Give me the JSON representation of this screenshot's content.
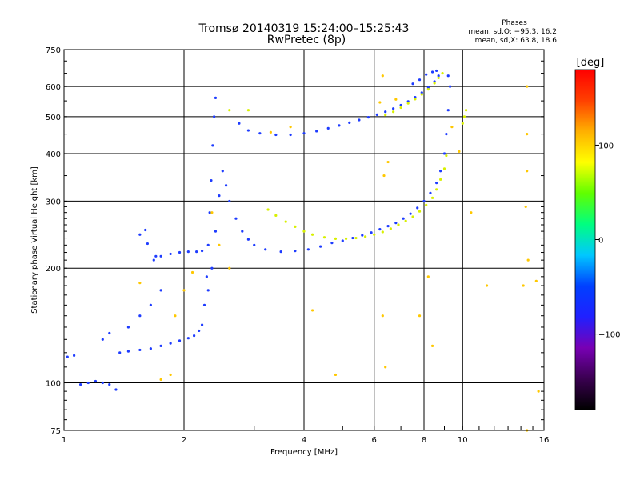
{
  "chart_data": {
    "type": "scatter",
    "title": "Tromsø 20140319 15:24:00–15:25:43",
    "subtitle": "RwPretec (8p)",
    "phases_title": "Phases",
    "phases_o": "mean, sd,O: −95.3, 16.2",
    "phases_x": "mean, sd,X:  63.8, 18.6",
    "xlabel": "Frequency [MHz]",
    "ylabel": "Stationary phase Virtual Height [km]",
    "xscale": "log",
    "yscale": "log",
    "xlim": [
      1,
      16
    ],
    "ylim": [
      75,
      750
    ],
    "grid": true,
    "x_ticks": [
      1,
      2,
      4,
      6,
      8,
      10,
      16
    ],
    "y_ticks": [
      75,
      100,
      200,
      300,
      400,
      500,
      600,
      750
    ],
    "colorbar": {
      "label": "[deg]",
      "range": [
        -180,
        180
      ],
      "ticks": [
        100,
        0,
        -100
      ],
      "colors": [
        "#000000",
        "#3a0050",
        "#7800b4",
        "#2020ff",
        "#0040ff",
        "#00c8ff",
        "#00ff80",
        "#60ff00",
        "#ffff00",
        "#ffb000",
        "#ff4000",
        "#ff0000"
      ]
    },
    "series": [
      {
        "mode": "O",
        "color": "#1e3cff",
        "points": [
          [
            1.02,
            117
          ],
          [
            1.06,
            118
          ],
          [
            1.1,
            99
          ],
          [
            1.15,
            100
          ],
          [
            1.2,
            101
          ],
          [
            1.25,
            100
          ],
          [
            1.3,
            99
          ],
          [
            1.35,
            96
          ],
          [
            1.38,
            120
          ],
          [
            1.45,
            121
          ],
          [
            1.55,
            122
          ],
          [
            1.65,
            123
          ],
          [
            1.75,
            125
          ],
          [
            1.85,
            127
          ],
          [
            1.95,
            129
          ],
          [
            2.05,
            131
          ],
          [
            2.12,
            133
          ],
          [
            2.18,
            137
          ],
          [
            2.22,
            142
          ],
          [
            2.25,
            160
          ],
          [
            2.28,
            190
          ],
          [
            2.3,
            230
          ],
          [
            2.32,
            280
          ],
          [
            2.34,
            340
          ],
          [
            2.36,
            420
          ],
          [
            2.38,
            500
          ],
          [
            2.4,
            560
          ],
          [
            1.68,
            210
          ],
          [
            1.75,
            215
          ],
          [
            1.85,
            218
          ],
          [
            1.95,
            220
          ],
          [
            2.05,
            221
          ],
          [
            2.15,
            221
          ],
          [
            2.22,
            222
          ],
          [
            2.3,
            175
          ],
          [
            2.35,
            200
          ],
          [
            2.4,
            250
          ],
          [
            2.45,
            310
          ],
          [
            2.5,
            360
          ],
          [
            2.55,
            330
          ],
          [
            2.6,
            300
          ],
          [
            2.7,
            270
          ],
          [
            2.8,
            250
          ],
          [
            2.9,
            238
          ],
          [
            3.0,
            230
          ],
          [
            3.2,
            224
          ],
          [
            3.5,
            221
          ],
          [
            3.8,
            222
          ],
          [
            4.1,
            224
          ],
          [
            4.4,
            228
          ],
          [
            4.7,
            233
          ],
          [
            5.0,
            236
          ],
          [
            5.3,
            240
          ],
          [
            5.6,
            244
          ],
          [
            5.9,
            248
          ],
          [
            6.2,
            253
          ],
          [
            6.5,
            258
          ],
          [
            6.8,
            263
          ],
          [
            7.1,
            270
          ],
          [
            7.4,
            278
          ],
          [
            7.7,
            288
          ],
          [
            8.0,
            300
          ],
          [
            8.3,
            315
          ],
          [
            8.6,
            335
          ],
          [
            8.8,
            360
          ],
          [
            9.0,
            400
          ],
          [
            9.1,
            450
          ],
          [
            9.2,
            520
          ],
          [
            9.3,
            600
          ],
          [
            9.2,
            640
          ],
          [
            2.75,
            480
          ],
          [
            2.9,
            460
          ],
          [
            3.1,
            452
          ],
          [
            3.4,
            448
          ],
          [
            3.7,
            448
          ],
          [
            4.0,
            452
          ],
          [
            4.3,
            458
          ],
          [
            4.6,
            466
          ],
          [
            4.9,
            474
          ],
          [
            5.2,
            482
          ],
          [
            5.5,
            490
          ],
          [
            5.8,
            498
          ],
          [
            6.1,
            506
          ],
          [
            6.4,
            515
          ],
          [
            6.7,
            525
          ],
          [
            7.0,
            536
          ],
          [
            7.3,
            548
          ],
          [
            7.6,
            562
          ],
          [
            7.9,
            578
          ],
          [
            8.2,
            596
          ],
          [
            8.5,
            618
          ],
          [
            8.7,
            640
          ],
          [
            7.5,
            610
          ],
          [
            7.8,
            625
          ],
          [
            8.1,
            645
          ],
          [
            8.4,
            655
          ],
          [
            8.6,
            660
          ],
          [
            1.55,
            245
          ],
          [
            1.6,
            252
          ],
          [
            1.62,
            232
          ],
          [
            1.7,
            215
          ],
          [
            1.45,
            140
          ],
          [
            1.55,
            150
          ],
          [
            1.65,
            160
          ],
          [
            1.75,
            175
          ],
          [
            1.25,
            130
          ],
          [
            1.3,
            135
          ]
        ]
      },
      {
        "mode": "X",
        "color": "#d8f000",
        "points": [
          [
            3.25,
            285
          ],
          [
            3.4,
            275
          ],
          [
            3.6,
            265
          ],
          [
            3.8,
            257
          ],
          [
            4.0,
            250
          ],
          [
            4.2,
            245
          ],
          [
            4.5,
            241
          ],
          [
            4.8,
            239
          ],
          [
            5.1,
            239
          ],
          [
            5.4,
            240
          ],
          [
            5.7,
            242
          ],
          [
            6.0,
            245
          ],
          [
            6.3,
            249
          ],
          [
            6.6,
            254
          ],
          [
            6.9,
            260
          ],
          [
            7.2,
            266
          ],
          [
            7.5,
            273
          ],
          [
            7.8,
            282
          ],
          [
            8.1,
            293
          ],
          [
            8.4,
            306
          ],
          [
            8.6,
            322
          ],
          [
            8.8,
            342
          ],
          [
            9.0,
            365
          ],
          [
            9.1,
            395
          ],
          [
            6.4,
            505
          ],
          [
            6.7,
            515
          ],
          [
            7.0,
            528
          ],
          [
            7.3,
            542
          ],
          [
            7.6,
            556
          ],
          [
            7.9,
            572
          ],
          [
            8.2,
            590
          ],
          [
            8.5,
            612
          ],
          [
            8.7,
            632
          ],
          [
            8.9,
            650
          ],
          [
            10.0,
            480
          ],
          [
            10.1,
            500
          ],
          [
            10.2,
            520
          ],
          [
            2.9,
            520
          ],
          [
            2.6,
            520
          ]
        ]
      },
      {
        "mode": "scattered",
        "color": "#ffc800",
        "points": [
          [
            1.9,
            150
          ],
          [
            1.85,
            105
          ],
          [
            1.75,
            102
          ],
          [
            2.0,
            175
          ],
          [
            2.1,
            195
          ],
          [
            1.55,
            183
          ],
          [
            2.35,
            280
          ],
          [
            2.45,
            230
          ],
          [
            2.6,
            200
          ],
          [
            3.3,
            455
          ],
          [
            3.7,
            470
          ],
          [
            4.2,
            155
          ],
          [
            4.8,
            105
          ],
          [
            6.3,
            640
          ],
          [
            6.3,
            150
          ],
          [
            6.4,
            110
          ],
          [
            6.5,
            380
          ],
          [
            7.8,
            150
          ],
          [
            8.2,
            190
          ],
          [
            8.4,
            125
          ],
          [
            9.4,
            470
          ],
          [
            9.8,
            405
          ],
          [
            10.5,
            280
          ],
          [
            11.5,
            180
          ],
          [
            14.5,
            600
          ],
          [
            14.5,
            360
          ],
          [
            14.6,
            210
          ],
          [
            14.5,
            75
          ],
          [
            15.3,
            185
          ],
          [
            15.5,
            95
          ],
          [
            14.2,
            180
          ],
          [
            14.4,
            290
          ],
          [
            14.5,
            450
          ],
          [
            6.2,
            545
          ],
          [
            6.35,
            350
          ],
          [
            6.8,
            555
          ]
        ]
      }
    ]
  }
}
